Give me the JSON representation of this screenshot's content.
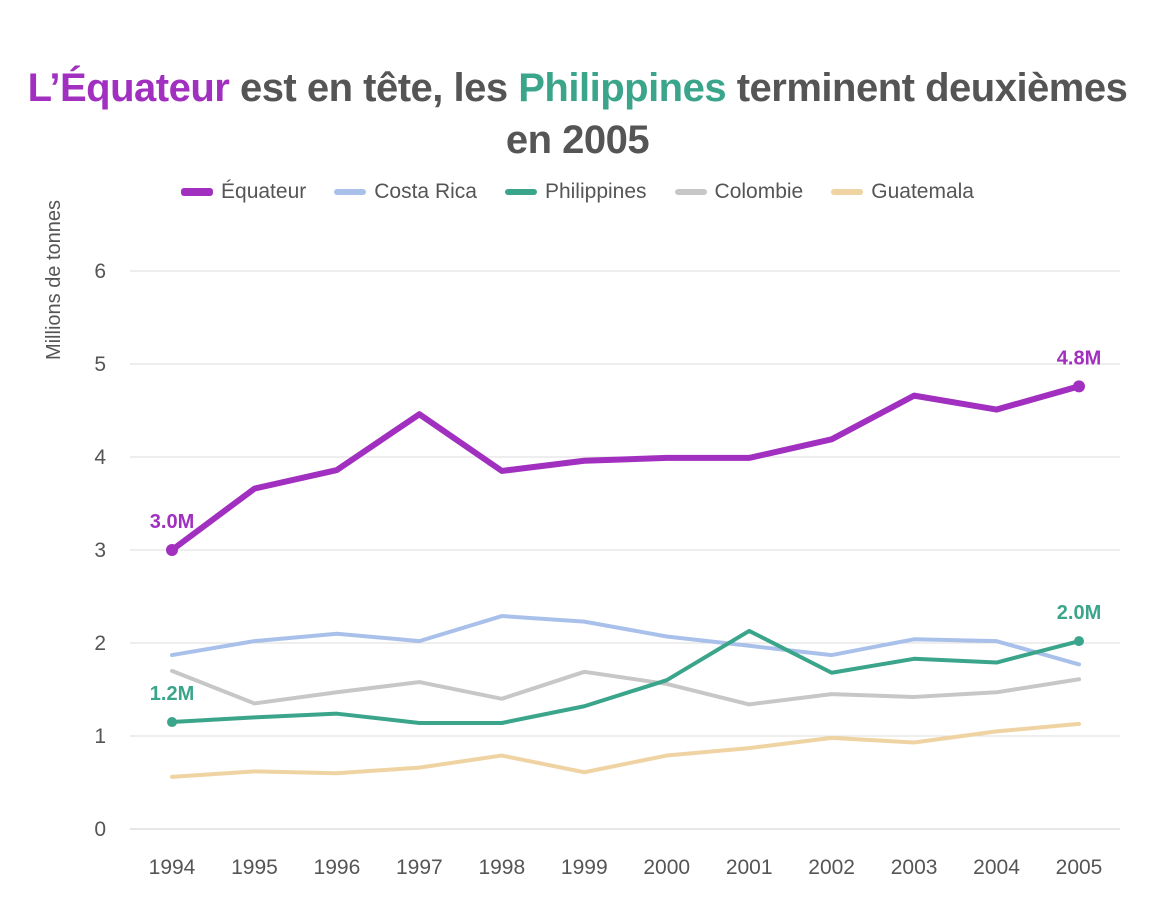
{
  "chart_data": {
    "type": "line",
    "title_parts": [
      {
        "text": "L’Équateur",
        "style": "ecuador"
      },
      {
        "text": " est en tête, les ",
        "style": "plain"
      },
      {
        "text": "Philippines",
        "style": "phil"
      },
      {
        "text": " terminent deuxièmes en 2005",
        "style": "plain"
      }
    ],
    "xlabel": "",
    "ylabel": "Millions de tonnes",
    "ylim": [
      0,
      6
    ],
    "yticks": [
      0,
      1,
      2,
      3,
      4,
      5,
      6
    ],
    "grid": true,
    "legend_position": "top",
    "categories": [
      "1994",
      "1995",
      "1996",
      "1997",
      "1998",
      "1999",
      "2000",
      "2001",
      "2002",
      "2003",
      "2004",
      "2005"
    ],
    "series": [
      {
        "name": "Guatemala",
        "color": "#efd3a3",
        "width": 4,
        "values": [
          0.56,
          0.62,
          0.6,
          0.66,
          0.79,
          0.61,
          0.79,
          0.87,
          0.98,
          0.93,
          1.05,
          1.13
        ]
      },
      {
        "name": "Colombie",
        "color": "#c7c7c7",
        "width": 4,
        "values": [
          1.7,
          1.35,
          1.47,
          1.58,
          1.4,
          1.69,
          1.56,
          1.34,
          1.45,
          1.42,
          1.47,
          1.61
        ]
      },
      {
        "name": "Costa Rica",
        "color": "#a9c1ea",
        "width": 4,
        "values": [
          1.87,
          2.02,
          2.1,
          2.02,
          2.29,
          2.23,
          2.07,
          1.97,
          1.87,
          2.04,
          2.02,
          1.77
        ]
      },
      {
        "name": "Philippines",
        "color": "#3aa58a",
        "width": 4,
        "values": [
          1.15,
          1.2,
          1.24,
          1.14,
          1.14,
          1.32,
          1.6,
          2.13,
          1.68,
          1.83,
          1.79,
          2.02
        ]
      },
      {
        "name": "Équateur",
        "color": "#a12fbf",
        "width": 6,
        "values": [
          3.0,
          3.66,
          3.86,
          4.46,
          3.85,
          3.96,
          3.99,
          3.99,
          4.19,
          4.66,
          4.51,
          4.76
        ]
      }
    ],
    "legend_order": [
      "Équateur",
      "Costa Rica",
      "Philippines",
      "Colombie",
      "Guatemala"
    ],
    "annotations": [
      {
        "series": "Équateur",
        "index": 0,
        "text": "3.0M"
      },
      {
        "series": "Équateur",
        "index": 11,
        "text": "4.8M"
      },
      {
        "series": "Philippines",
        "index": 0,
        "text": "1.2M"
      },
      {
        "series": "Philippines",
        "index": 11,
        "text": "2.0M"
      }
    ]
  }
}
